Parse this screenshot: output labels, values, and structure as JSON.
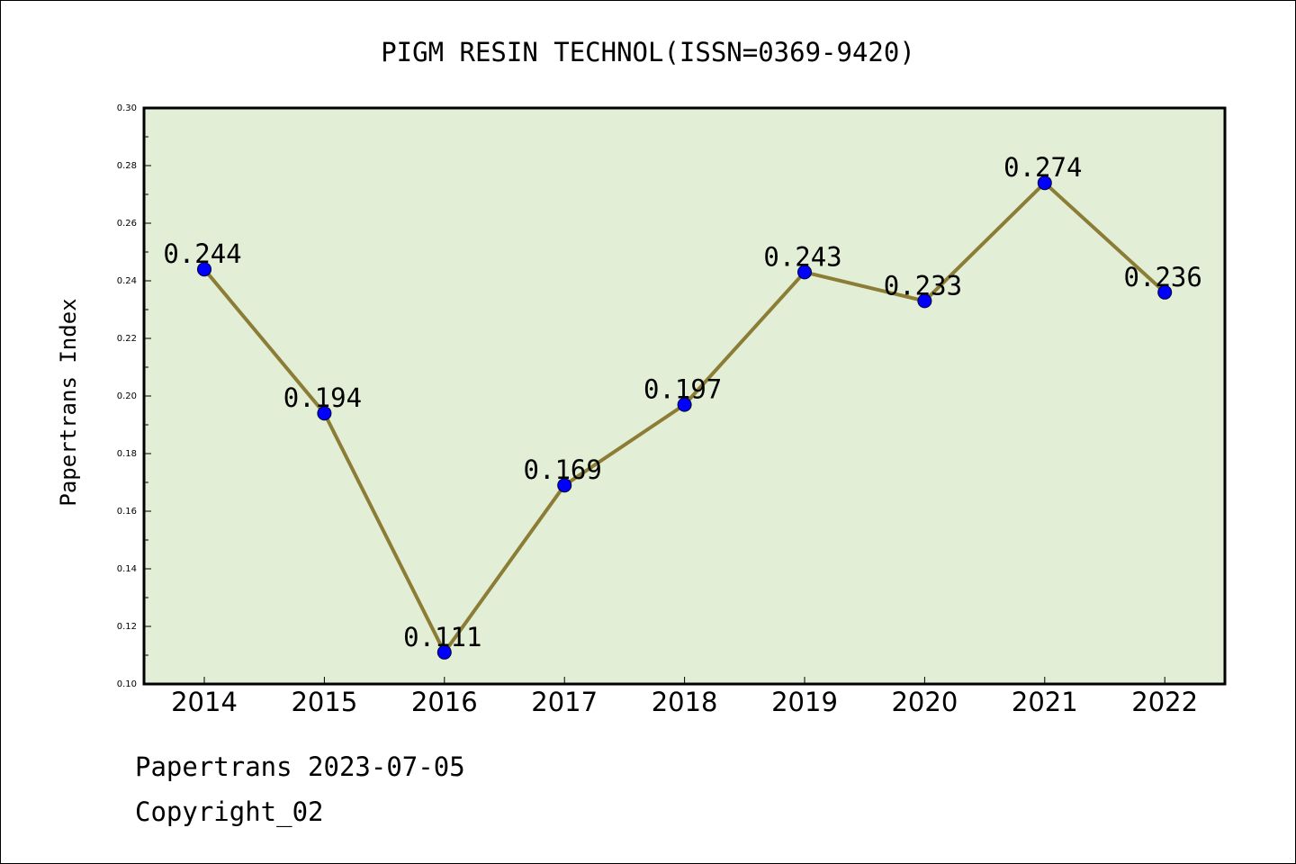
{
  "chart_data": {
    "type": "line",
    "title": "PIGM RESIN TECHNOL(ISSN=0369-9420)",
    "xlabel": "",
    "ylabel": "Papertrans Index",
    "categories": [
      "2014",
      "2015",
      "2016",
      "2017",
      "2018",
      "2019",
      "2020",
      "2021",
      "2022"
    ],
    "values": [
      0.244,
      0.194,
      0.111,
      0.169,
      0.197,
      0.243,
      0.233,
      0.274,
      0.236
    ],
    "data_labels": [
      "0.244",
      "0.194",
      "0.111",
      "0.169",
      "0.197",
      "0.243",
      "0.233",
      "0.274",
      "0.236"
    ],
    "ylim": [
      0.1,
      0.3
    ],
    "yticks": [
      "0.10",
      "0.12",
      "0.14",
      "0.16",
      "0.18",
      "0.20",
      "0.22",
      "0.24",
      "0.26",
      "0.28",
      "0.30"
    ],
    "grid": false,
    "colors": {
      "plot_background": "#e2efd6",
      "line": "#8b7d35",
      "marker": "#0000ff"
    }
  },
  "footer": {
    "source": "Papertrans 2023-07-05",
    "copyright": "Copyright_02"
  }
}
